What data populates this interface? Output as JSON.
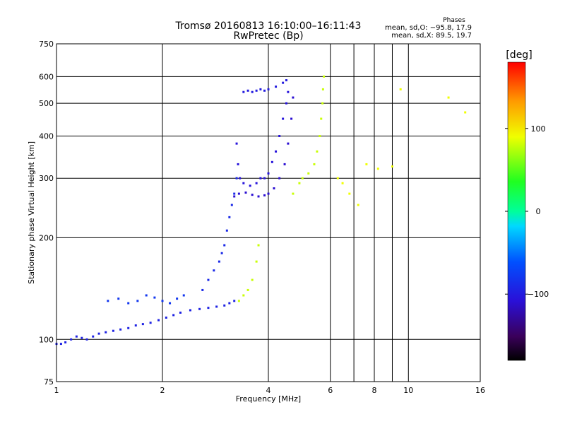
{
  "chart_data": {
    "type": "scatter",
    "title": "Tromsø 20160813 16:10:00–16:11:43",
    "subtitle": "RwPretec (Bp)",
    "info": {
      "heading": "Phases",
      "line_o": "mean, sd,O: −95.8, 17.9",
      "line_x": "mean, sd,X: 89.5, 19.7"
    },
    "xlabel": "Frequency [MHz]",
    "ylabel": "Stationary phase Virtual Height [km]",
    "x_scale": "log",
    "y_scale": "log",
    "xlim": [
      1,
      16
    ],
    "ylim": [
      75,
      750
    ],
    "x_ticks": [
      {
        "value": 1,
        "label": "1"
      },
      {
        "value": 2,
        "label": "2"
      },
      {
        "value": 4,
        "label": "4"
      },
      {
        "value": 6,
        "label": "6"
      },
      {
        "value": 8,
        "label": "8"
      },
      {
        "value": 10,
        "label": "10"
      },
      {
        "value": 16,
        "label": "16"
      }
    ],
    "x_minor": [
      7,
      9
    ],
    "y_ticks": [
      {
        "value": 75,
        "label": "75"
      },
      {
        "value": 100,
        "label": "100"
      },
      {
        "value": 200,
        "label": "200"
      },
      {
        "value": 300,
        "label": "300"
      },
      {
        "value": 400,
        "label": "400"
      },
      {
        "value": 500,
        "label": "500"
      },
      {
        "value": 600,
        "label": "600"
      },
      {
        "value": 750,
        "label": "750"
      }
    ],
    "grid": true,
    "colorbar": {
      "label": "[deg]",
      "range": [
        -180,
        180
      ],
      "ticks": [
        {
          "value": 100,
          "label": "100"
        },
        {
          "value": 0,
          "label": "0"
        },
        {
          "value": -100,
          "label": "−100"
        }
      ]
    },
    "series": [
      {
        "phase_deg": -95,
        "points": [
          [
            1.0,
            97
          ],
          [
            1.03,
            97
          ],
          [
            1.06,
            98
          ],
          [
            1.1,
            100
          ],
          [
            1.14,
            102
          ],
          [
            1.18,
            101
          ],
          [
            1.22,
            100
          ],
          [
            1.27,
            102
          ],
          [
            1.32,
            104
          ],
          [
            1.38,
            105
          ],
          [
            1.45,
            106
          ],
          [
            1.52,
            107
          ],
          [
            1.6,
            108
          ],
          [
            1.68,
            110
          ],
          [
            1.76,
            111
          ],
          [
            1.85,
            112
          ],
          [
            1.95,
            114
          ],
          [
            2.05,
            116
          ],
          [
            2.15,
            118
          ],
          [
            2.25,
            120
          ],
          [
            2.4,
            122
          ],
          [
            2.55,
            123
          ],
          [
            2.7,
            124
          ],
          [
            2.85,
            125
          ],
          [
            3.0,
            126
          ],
          [
            3.1,
            128
          ],
          [
            3.2,
            130
          ]
        ]
      },
      {
        "phase_deg": -110,
        "points": [
          [
            3.2,
            265
          ],
          [
            3.3,
            270
          ],
          [
            3.45,
            272
          ],
          [
            3.6,
            268
          ],
          [
            3.75,
            265
          ],
          [
            3.9,
            267
          ],
          [
            4.0,
            270
          ],
          [
            4.15,
            280
          ],
          [
            4.3,
            300
          ],
          [
            4.45,
            330
          ],
          [
            4.55,
            380
          ],
          [
            4.65,
            450
          ],
          [
            4.7,
            520
          ]
        ]
      },
      {
        "phase_deg": -105,
        "points": [
          [
            3.25,
            380
          ],
          [
            3.28,
            330
          ],
          [
            3.32,
            300
          ],
          [
            3.4,
            290
          ],
          [
            3.55,
            285
          ],
          [
            3.7,
            290
          ],
          [
            3.8,
            300
          ],
          [
            3.9,
            300
          ],
          [
            4.0,
            310
          ],
          [
            4.1,
            335
          ],
          [
            4.2,
            360
          ],
          [
            4.3,
            400
          ],
          [
            4.4,
            450
          ],
          [
            4.5,
            500
          ],
          [
            4.55,
            540
          ]
        ]
      },
      {
        "phase_deg": -100,
        "points": [
          [
            3.4,
            540
          ],
          [
            3.5,
            545
          ],
          [
            3.6,
            540
          ],
          [
            3.7,
            545
          ],
          [
            3.8,
            550
          ],
          [
            3.9,
            545
          ],
          [
            4.0,
            550
          ],
          [
            4.2,
            560
          ],
          [
            4.4,
            575
          ],
          [
            4.5,
            585
          ]
        ]
      },
      {
        "phase_deg": -90,
        "points": [
          [
            2.6,
            140
          ],
          [
            2.7,
            150
          ],
          [
            2.8,
            160
          ],
          [
            2.9,
            170
          ],
          [
            2.95,
            180
          ],
          [
            3.0,
            190
          ],
          [
            3.05,
            210
          ],
          [
            3.1,
            230
          ],
          [
            3.15,
            250
          ],
          [
            3.2,
            270
          ],
          [
            3.25,
            300
          ]
        ]
      },
      {
        "phase_deg": -80,
        "points": [
          [
            1.4,
            130
          ],
          [
            1.5,
            132
          ],
          [
            1.6,
            128
          ],
          [
            1.7,
            130
          ],
          [
            1.8,
            135
          ],
          [
            1.9,
            133
          ],
          [
            2.0,
            130
          ],
          [
            2.1,
            128
          ],
          [
            2.2,
            132
          ],
          [
            2.3,
            135
          ]
        ]
      },
      {
        "phase_deg": 80,
        "points": [
          [
            3.3,
            130
          ],
          [
            3.4,
            135
          ],
          [
            3.5,
            140
          ],
          [
            3.6,
            150
          ],
          [
            3.7,
            170
          ],
          [
            3.75,
            190
          ],
          [
            4.7,
            270
          ],
          [
            4.9,
            290
          ],
          [
            5.0,
            300
          ],
          [
            5.2,
            310
          ],
          [
            5.4,
            330
          ],
          [
            5.5,
            360
          ],
          [
            5.6,
            400
          ],
          [
            5.65,
            450
          ],
          [
            5.7,
            500
          ],
          [
            5.72,
            550
          ],
          [
            5.75,
            600
          ]
        ]
      },
      {
        "phase_deg": 90,
        "points": [
          [
            6.3,
            300
          ],
          [
            6.5,
            290
          ],
          [
            6.8,
            270
          ],
          [
            7.2,
            250
          ],
          [
            7.6,
            330
          ],
          [
            8.2,
            320
          ],
          [
            9.0,
            325
          ],
          [
            9.5,
            550
          ],
          [
            13.0,
            520
          ],
          [
            14.5,
            470
          ]
        ]
      }
    ]
  }
}
